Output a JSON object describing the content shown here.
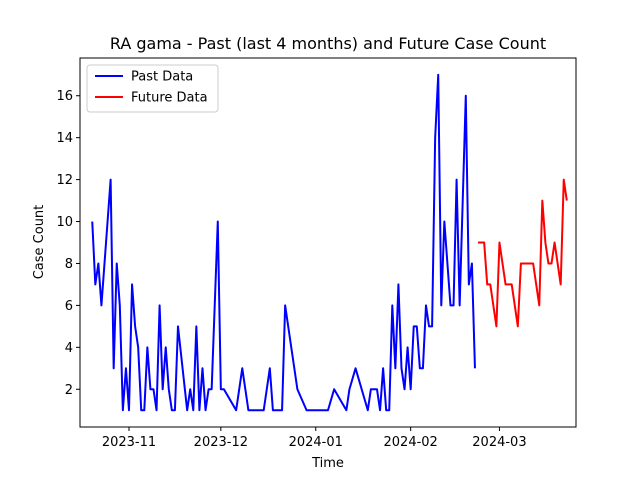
{
  "chart_data": {
    "type": "line",
    "title": "RA gama - Past (last 4 months) and Future Case Count",
    "xlabel": "Time",
    "ylabel": "Case Count",
    "x_ticks": [
      "2023-11",
      "2023-12",
      "2024-01",
      "2024-02",
      "2024-03"
    ],
    "xlim": [
      "2023-10-16",
      "2024-03-26"
    ],
    "y_ticks": [
      "2",
      "4",
      "6",
      "8",
      "10",
      "12",
      "14",
      "16"
    ],
    "ylim": [
      0.2,
      17.8
    ],
    "grid": false,
    "legend_position": "upper-left",
    "series": [
      {
        "name": "Past Data",
        "color": "#0000ff",
        "points": [
          [
            "2023-10-20",
            10
          ],
          [
            "2023-10-21",
            7
          ],
          [
            "2023-10-22",
            8
          ],
          [
            "2023-10-23",
            6
          ],
          [
            "2023-10-25",
            10
          ],
          [
            "2023-10-26",
            12
          ],
          [
            "2023-10-27",
            3
          ],
          [
            "2023-10-28",
            8
          ],
          [
            "2023-10-29",
            6
          ],
          [
            "2023-10-30",
            1
          ],
          [
            "2023-10-31",
            3
          ],
          [
            "2023-11-01",
            1
          ],
          [
            "2023-11-02",
            7
          ],
          [
            "2023-11-03",
            5
          ],
          [
            "2023-11-04",
            4
          ],
          [
            "2023-11-05",
            1
          ],
          [
            "2023-11-06",
            1
          ],
          [
            "2023-11-07",
            4
          ],
          [
            "2023-11-08",
            2
          ],
          [
            "2023-11-09",
            2
          ],
          [
            "2023-11-10",
            1
          ],
          [
            "2023-11-11",
            6
          ],
          [
            "2023-11-12",
            2
          ],
          [
            "2023-11-13",
            4
          ],
          [
            "2023-11-14",
            2
          ],
          [
            "2023-11-15",
            1
          ],
          [
            "2023-11-16",
            1
          ],
          [
            "2023-11-17",
            5
          ],
          [
            "2023-11-20",
            1
          ],
          [
            "2023-11-21",
            2
          ],
          [
            "2023-11-22",
            1
          ],
          [
            "2023-11-23",
            5
          ],
          [
            "2023-11-24",
            1
          ],
          [
            "2023-11-25",
            3
          ],
          [
            "2023-11-26",
            1
          ],
          [
            "2023-11-27",
            2
          ],
          [
            "2023-11-28",
            2
          ],
          [
            "2023-11-30",
            10
          ],
          [
            "2023-12-01",
            2
          ],
          [
            "2023-12-02",
            2
          ],
          [
            "2023-12-06",
            1
          ],
          [
            "2023-12-08",
            3
          ],
          [
            "2023-12-10",
            1
          ],
          [
            "2023-12-15",
            1
          ],
          [
            "2023-12-17",
            3
          ],
          [
            "2023-12-18",
            1
          ],
          [
            "2023-12-21",
            1
          ],
          [
            "2023-12-22",
            6
          ],
          [
            "2023-12-26",
            2
          ],
          [
            "2023-12-29",
            1
          ],
          [
            "2024-01-05",
            1
          ],
          [
            "2024-01-07",
            2
          ],
          [
            "2024-01-11",
            1
          ],
          [
            "2024-01-12",
            2
          ],
          [
            "2024-01-14",
            3
          ],
          [
            "2024-01-18",
            1
          ],
          [
            "2024-01-19",
            2
          ],
          [
            "2024-01-21",
            2
          ],
          [
            "2024-01-22",
            1
          ],
          [
            "2024-01-23",
            3
          ],
          [
            "2024-01-24",
            1
          ],
          [
            "2024-01-25",
            1
          ],
          [
            "2024-01-26",
            6
          ],
          [
            "2024-01-27",
            3
          ],
          [
            "2024-01-28",
            7
          ],
          [
            "2024-01-29",
            3
          ],
          [
            "2024-01-30",
            2
          ],
          [
            "2024-01-31",
            4
          ],
          [
            "2024-02-01",
            2
          ],
          [
            "2024-02-02",
            5
          ],
          [
            "2024-02-03",
            5
          ],
          [
            "2024-02-04",
            3
          ],
          [
            "2024-02-05",
            3
          ],
          [
            "2024-02-06",
            6
          ],
          [
            "2024-02-07",
            5
          ],
          [
            "2024-02-08",
            5
          ],
          [
            "2024-02-09",
            14
          ],
          [
            "2024-02-10",
            17
          ],
          [
            "2024-02-11",
            6
          ],
          [
            "2024-02-12",
            10
          ],
          [
            "2024-02-13",
            8
          ],
          [
            "2024-02-14",
            6
          ],
          [
            "2024-02-15",
            6
          ],
          [
            "2024-02-16",
            12
          ],
          [
            "2024-02-17",
            6
          ],
          [
            "2024-02-18",
            11
          ],
          [
            "2024-02-19",
            16
          ],
          [
            "2024-02-20",
            7
          ],
          [
            "2024-02-21",
            8
          ],
          [
            "2024-02-22",
            3
          ]
        ]
      },
      {
        "name": "Future Data",
        "color": "#ff0000",
        "points": [
          [
            "2024-02-23",
            9
          ],
          [
            "2024-02-25",
            9
          ],
          [
            "2024-02-26",
            7
          ],
          [
            "2024-02-27",
            7
          ],
          [
            "2024-02-29",
            5
          ],
          [
            "2024-03-01",
            9
          ],
          [
            "2024-03-03",
            7
          ],
          [
            "2024-03-05",
            7
          ],
          [
            "2024-03-07",
            5
          ],
          [
            "2024-03-08",
            8
          ],
          [
            "2024-03-12",
            8
          ],
          [
            "2024-03-14",
            6
          ],
          [
            "2024-03-15",
            11
          ],
          [
            "2024-03-16",
            9
          ],
          [
            "2024-03-17",
            8
          ],
          [
            "2024-03-18",
            8
          ],
          [
            "2024-03-19",
            9
          ],
          [
            "2024-03-21",
            7
          ],
          [
            "2024-03-22",
            12
          ],
          [
            "2024-03-23",
            11
          ]
        ]
      }
    ]
  }
}
